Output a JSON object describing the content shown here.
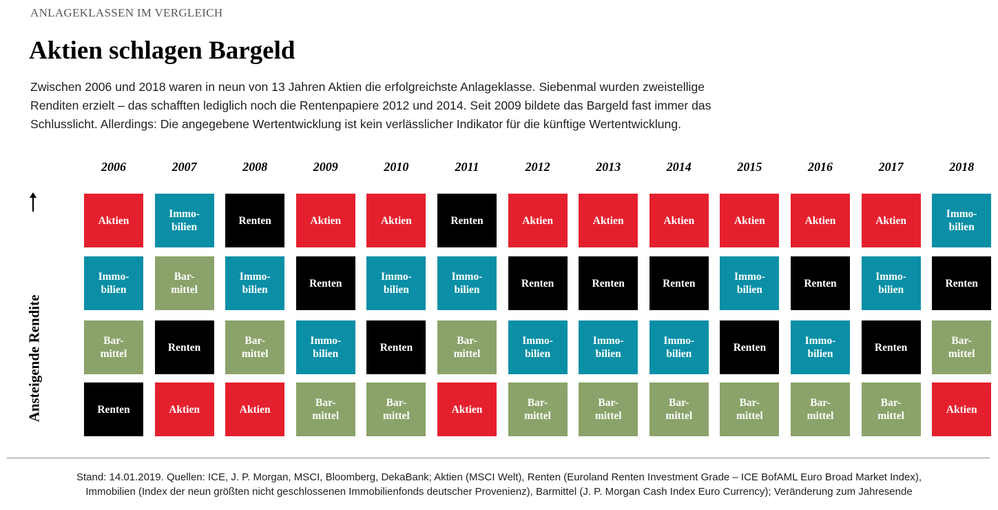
{
  "kicker": "ANLAGEKLASSEN IM VERGLEICH",
  "title": "Aktien schlagen Bargeld",
  "intro": [
    "Zwischen 2006 und 2018 waren in neun von 13 Jahren Aktien die erfolgreichste Anlageklasse. Siebenmal wurden zweistellige",
    "Renditen erzielt – das schafften lediglich noch die Rentenpapiere 2012 und 2014. Seit 2009 bildete das Bargeld fast immer das",
    "Schlusslicht. Allerdings: Die angegebene Wertentwicklung ist kein verlässlicher Indikator für die künftige Wertentwicklung."
  ],
  "footer": [
    "Stand: 14.01.2019. Quellen: ICE, J. P. Morgan, MSCI, Bloomberg, DekaBank; Aktien (MSCI Welt), Renten (Euroland Renten Investment Grade – ICE BofAML Euro Broad Market Index),",
    "Immobilien (Index der neun größten nicht geschlossenen Immobilienfonds deutscher Provenienz), Barmittel (J. P. Morgan Cash Index Euro Currency); Veränderung zum Jahresende"
  ],
  "chart_data": {
    "type": "table",
    "ylabel": "Ansteigende Rendite",
    "years": [
      "2006",
      "2007",
      "2008",
      "2009",
      "2010",
      "2011",
      "2012",
      "2013",
      "2014",
      "2015",
      "2016",
      "2017",
      "2018"
    ],
    "classes": {
      "Aktien": {
        "label": "Aktien",
        "color": "#e5202e"
      },
      "Immobilien": {
        "label": "Immo-\nbilien",
        "color": "#0b8fa6"
      },
      "Renten": {
        "label": "Renten",
        "color": "#000000"
      },
      "Barmittel": {
        "label": "Bar-\nmittel",
        "color": "#8ba36a"
      }
    },
    "ranking": [
      [
        "Aktien",
        "Immobilien",
        "Renten",
        "Aktien",
        "Aktien",
        "Renten",
        "Aktien",
        "Aktien",
        "Aktien",
        "Aktien",
        "Aktien",
        "Aktien",
        "Immobilien"
      ],
      [
        "Immobilien",
        "Barmittel",
        "Immobilien",
        "Renten",
        "Immobilien",
        "Immobilien",
        "Renten",
        "Renten",
        "Renten",
        "Immobilien",
        "Renten",
        "Immobilien",
        "Renten"
      ],
      [
        "Barmittel",
        "Renten",
        "Barmittel",
        "Immobilien",
        "Renten",
        "Barmittel",
        "Immobilien",
        "Immobilien",
        "Immobilien",
        "Renten",
        "Immobilien",
        "Renten",
        "Barmittel"
      ],
      [
        "Renten",
        "Aktien",
        "Aktien",
        "Barmittel",
        "Barmittel",
        "Aktien",
        "Barmittel",
        "Barmittel",
        "Barmittel",
        "Barmittel",
        "Barmittel",
        "Barmittel",
        "Aktien"
      ]
    ]
  }
}
